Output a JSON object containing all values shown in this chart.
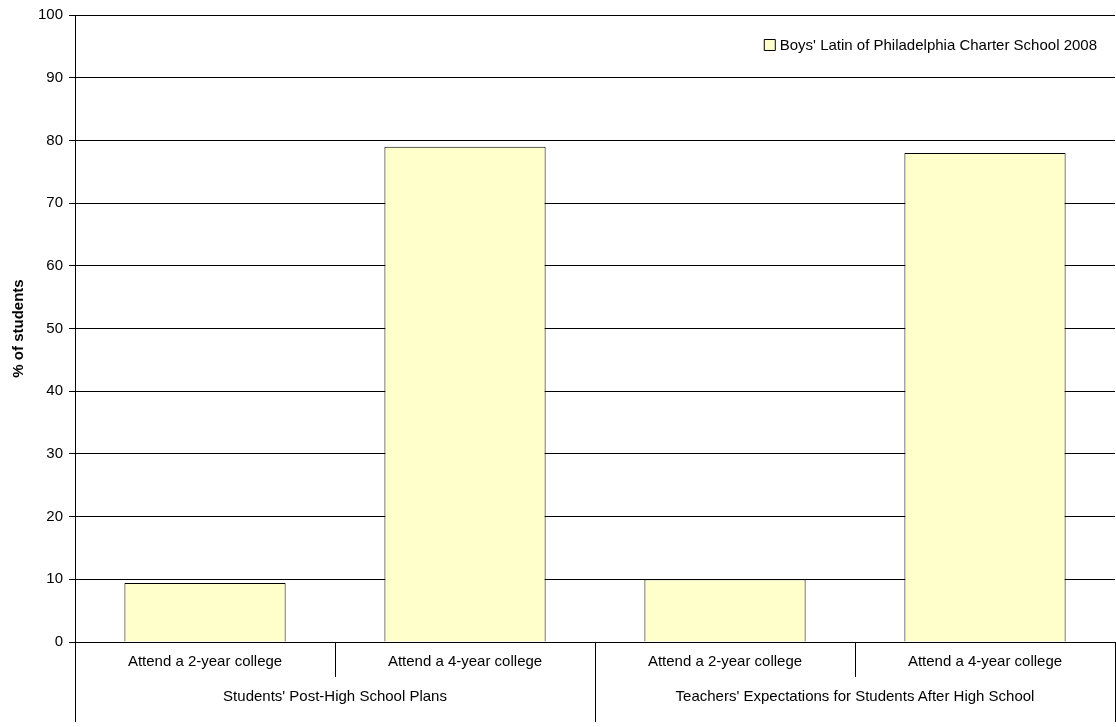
{
  "chart_data": {
    "type": "bar",
    "ylabel": "% of students",
    "categories": [
      "Attend a 2-year college",
      "Attend a 4-year college",
      "Attend a 2-year college",
      "Attend a 4-year college"
    ],
    "annotations": [
      "Students' Post-High School Plans",
      "Teachers' Expectations for Students After High School"
    ],
    "series": [
      {
        "name": "Boys' Latin of Philadelphia Charter School 2008",
        "color": "#ffffcc",
        "values": [
          9.4,
          79,
          10,
          78
        ]
      }
    ],
    "ylim": [
      0,
      100
    ],
    "yticks": [
      0,
      10,
      20,
      30,
      40,
      50,
      60,
      70,
      80,
      90,
      100
    ],
    "grid": "y",
    "legend": "top right"
  }
}
